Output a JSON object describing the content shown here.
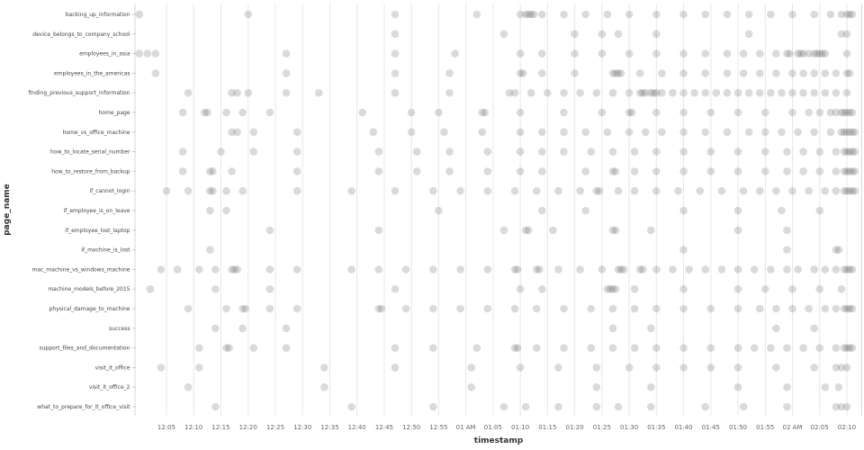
{
  "chart_data": {
    "type": "scatter",
    "title": "",
    "xlabel": "timestamp",
    "ylabel": "page_name",
    "x_unit": "minutes_after_12:00_AM",
    "xlim_minutes": [
      0,
      132
    ],
    "grid": "vertical_only",
    "legend": "none",
    "dot_opacity": 0.22,
    "colors": {
      "dot": "#555555",
      "grid": "#e7e7e7",
      "axis": "#d9d9d9",
      "tick_mark": "#cccccc",
      "tick_text": "#666666",
      "label_text": "#444444"
    },
    "tick_minutes": [
      5,
      10,
      15,
      20,
      25,
      30,
      35,
      40,
      45,
      50,
      55,
      60,
      65,
      70,
      75,
      80,
      85,
      90,
      95,
      100,
      105,
      110,
      115,
      120,
      125,
      130
    ],
    "tick_labels": [
      "12:05",
      "12:10",
      "12:15",
      "12:20",
      "12:25",
      "12:30",
      "12:35",
      "12:40",
      "12:45",
      "12:50",
      "12:55",
      "01 AM",
      "01:05",
      "01:10",
      "01:15",
      "01:20",
      "01:25",
      "01:30",
      "01:35",
      "01:40",
      "01:45",
      "01:50",
      "01:55",
      "02 AM",
      "02:05",
      "02:10"
    ],
    "categories": [
      "backing_up_information",
      "device_belongs_to_company_school",
      "employees_in_asia",
      "employees_in_the_americas",
      "finding_previous_support_information",
      "home_page",
      "home_vs_office_machine",
      "how_to_locate_serial_number",
      "how_to_restore_from_backup",
      "if_cannot_login",
      "if_employee_is_on_leave",
      "if_employee_lost_laptop",
      "if_machine_is_lost",
      "mac_machine_vs_windows_machine",
      "machine_models_before_2015",
      "physical_damage_to_machine",
      "success",
      "support_files_and_documentation",
      "visit_it_office",
      "visit_it_office_2",
      "what_to_prepare_for_it_office_visit"
    ],
    "series": [
      {
        "page": "backing_up_information",
        "times": [
          0,
          20,
          47,
          62,
          70,
          71,
          71.5,
          72,
          72.5,
          74,
          78,
          82,
          86,
          90,
          95,
          100,
          104,
          108,
          112,
          116,
          120,
          124,
          127,
          129,
          130,
          130.5,
          131
        ]
      },
      {
        "page": "device_belongs_to_company_school",
        "times": [
          47,
          67,
          80,
          85,
          88,
          95,
          112,
          129,
          130
        ]
      },
      {
        "page": "employees_in_asia",
        "times": [
          0,
          1.5,
          3,
          27,
          47,
          58,
          70,
          74,
          80,
          85,
          90,
          95,
          100,
          104,
          108,
          111,
          114,
          117,
          119,
          119.5,
          121,
          121.5,
          122,
          123,
          124,
          124.5,
          125,
          125.5,
          126,
          130
        ]
      },
      {
        "page": "employees_in_the_americas",
        "times": [
          3,
          27,
          47,
          57,
          70,
          70.5,
          74,
          80,
          87,
          87.5,
          88,
          88.5,
          92,
          96,
          100,
          104,
          108,
          111,
          114,
          117,
          120,
          122,
          124,
          126,
          128,
          130,
          130.5
        ]
      },
      {
        "page": "finding_previous_support_information",
        "times": [
          9,
          17,
          18,
          20,
          27,
          33,
          47,
          57,
          68,
          69,
          72,
          75,
          78,
          81,
          84,
          87,
          90,
          92,
          92.5,
          93,
          94,
          94.5,
          95,
          96,
          98,
          100,
          102,
          104,
          106,
          108,
          110,
          112,
          114,
          116,
          118,
          120,
          122,
          124,
          126,
          128,
          130
        ]
      },
      {
        "page": "home_page",
        "times": [
          8,
          12,
          12.5,
          16,
          19,
          24,
          41,
          50,
          55,
          63,
          63.5,
          70,
          78,
          85,
          90,
          90.5,
          95,
          100,
          105,
          110,
          115,
          120,
          123,
          125,
          127,
          128,
          129,
          129.5,
          130,
          130.5,
          131
        ]
      },
      {
        "page": "home_vs_office_machine",
        "times": [
          17,
          18,
          21,
          29,
          43,
          50,
          56,
          63,
          70,
          74,
          78,
          82,
          86,
          90,
          93,
          96,
          100,
          104,
          108,
          112,
          115,
          118,
          121,
          124,
          127,
          129,
          129.5,
          130,
          130.5,
          131,
          131.5
        ]
      },
      {
        "page": "how_to_locate_serial_number",
        "times": [
          8,
          15,
          21,
          29,
          44,
          51,
          57,
          64,
          70,
          74,
          78,
          83,
          87,
          91,
          95,
          100,
          105,
          110,
          115,
          119,
          122,
          125,
          128,
          129.5,
          130,
          130.5,
          131,
          131.5
        ]
      },
      {
        "page": "how_to_restore_from_backup",
        "times": [
          8,
          13,
          13.5,
          17,
          29,
          44,
          51,
          57,
          64,
          70,
          74,
          82,
          87,
          87.5,
          91,
          95,
          100,
          105,
          110,
          115,
          119,
          122,
          125,
          128,
          129.5,
          130,
          130.5,
          131,
          131.5
        ]
      },
      {
        "page": "if_cannot_login",
        "times": [
          5,
          9,
          13,
          13.5,
          16,
          19,
          29,
          39,
          47,
          54,
          59,
          64,
          69,
          73,
          77,
          81,
          84,
          84.5,
          88,
          91,
          95,
          99,
          103,
          107,
          111,
          114,
          117,
          120,
          123,
          126,
          128,
          129.5,
          130,
          130.5,
          131,
          131.5
        ]
      },
      {
        "page": "if_employee_is_on_leave",
        "times": [
          13,
          16,
          55,
          74,
          82,
          100,
          110,
          118,
          125
        ]
      },
      {
        "page": "if_employee_lost_laptop",
        "times": [
          24,
          44,
          67,
          71,
          71.5,
          76,
          87,
          87.5,
          94,
          110,
          119
        ]
      },
      {
        "page": "if_machine_is_lost",
        "times": [
          13,
          100,
          119,
          128,
          128.5
        ]
      },
      {
        "page": "mac_machine_vs_windows_machine",
        "times": [
          4,
          7,
          11,
          14,
          17,
          17.5,
          18,
          24,
          29,
          39,
          44,
          49,
          54,
          59,
          64,
          69,
          69.5,
          73,
          73.5,
          77,
          81,
          85,
          88,
          88.5,
          89,
          92,
          92.5,
          95,
          98,
          101,
          104,
          107,
          110,
          113,
          116,
          119,
          121,
          124,
          126,
          128,
          129.5,
          130,
          130.5,
          131
        ]
      },
      {
        "page": "machine_models_before_2015",
        "times": [
          2,
          14,
          24,
          47,
          70,
          74,
          86,
          86.5,
          87,
          87.5,
          91,
          100,
          110,
          115,
          120,
          125,
          129
        ]
      },
      {
        "page": "physical_damage_to_machine",
        "times": [
          9,
          16,
          19,
          19.5,
          24,
          29,
          44,
          44.5,
          49,
          54,
          59,
          64,
          69,
          73,
          78,
          83,
          87,
          91,
          95,
          100,
          105,
          110,
          114,
          117,
          120,
          123,
          126,
          128,
          129.5,
          130,
          130.5,
          131
        ]
      },
      {
        "page": "success",
        "times": [
          14,
          19,
          27,
          87,
          94,
          117,
          124
        ]
      },
      {
        "page": "support_files_and_documentation",
        "times": [
          11,
          16,
          16.5,
          21,
          27,
          47,
          54,
          62,
          69,
          69.5,
          73,
          78,
          83,
          87,
          91,
          95,
          100,
          105,
          110,
          113,
          116,
          119,
          122,
          125,
          128,
          129.5,
          130,
          130.5,
          131
        ]
      },
      {
        "page": "visit_it_office",
        "times": [
          4,
          11,
          34,
          47,
          61,
          70,
          77,
          84,
          90,
          95,
          100,
          105,
          110,
          117,
          124,
          128,
          129,
          130
        ]
      },
      {
        "page": "visit_it_office_2",
        "times": [
          9,
          34,
          61,
          84,
          94,
          110,
          119,
          126,
          128.5
        ]
      },
      {
        "page": "what_to_prepare_for_it_office_visit",
        "times": [
          14,
          39,
          54,
          67,
          71,
          77,
          84,
          88,
          94,
          104,
          111,
          119,
          128,
          129,
          130
        ]
      }
    ]
  }
}
